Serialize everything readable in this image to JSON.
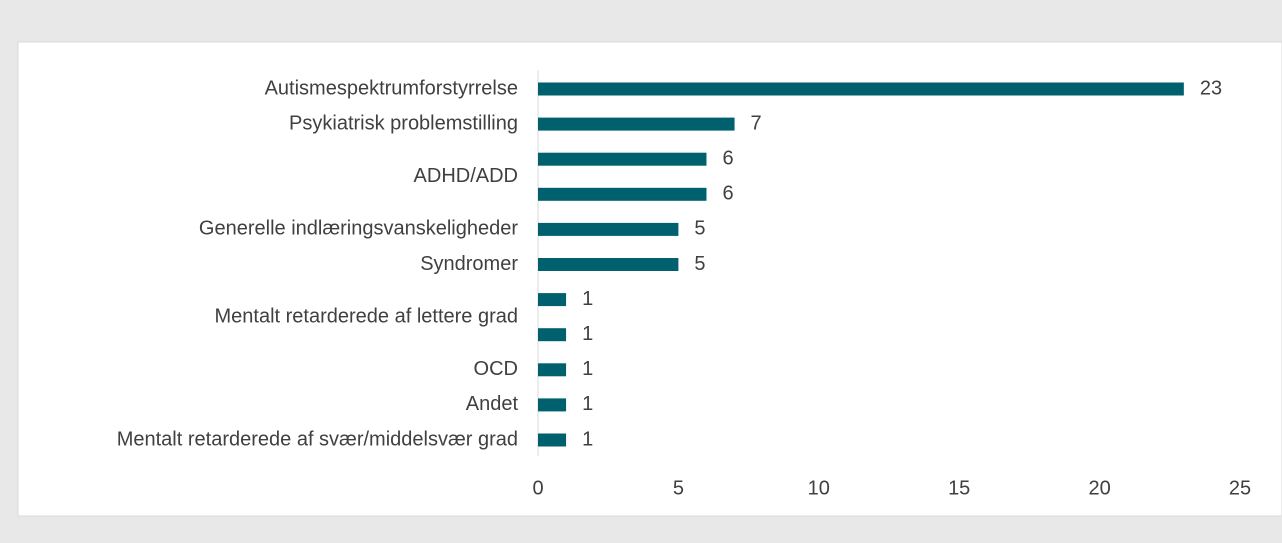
{
  "chart_data": {
    "type": "barh",
    "categories": [
      "Autismespektrumforstyrrelse",
      "Psykiatrisk problemstilling",
      "ADHD/ADD",
      null,
      "Generelle indlæringsvanskeligheder",
      "Syndromer",
      "Mentalt retarderede af lettere grad",
      null,
      "OCD",
      "Andet",
      "Mentalt retarderede af svær/middelsvær grad"
    ],
    "values": [
      23,
      7,
      6,
      6,
      5,
      5,
      1,
      1,
      1,
      1,
      1
    ],
    "color": "#00606e",
    "xlim": [
      0,
      25
    ],
    "xticks": [
      0,
      5,
      10,
      15,
      20,
      25
    ],
    "grid": false
  }
}
